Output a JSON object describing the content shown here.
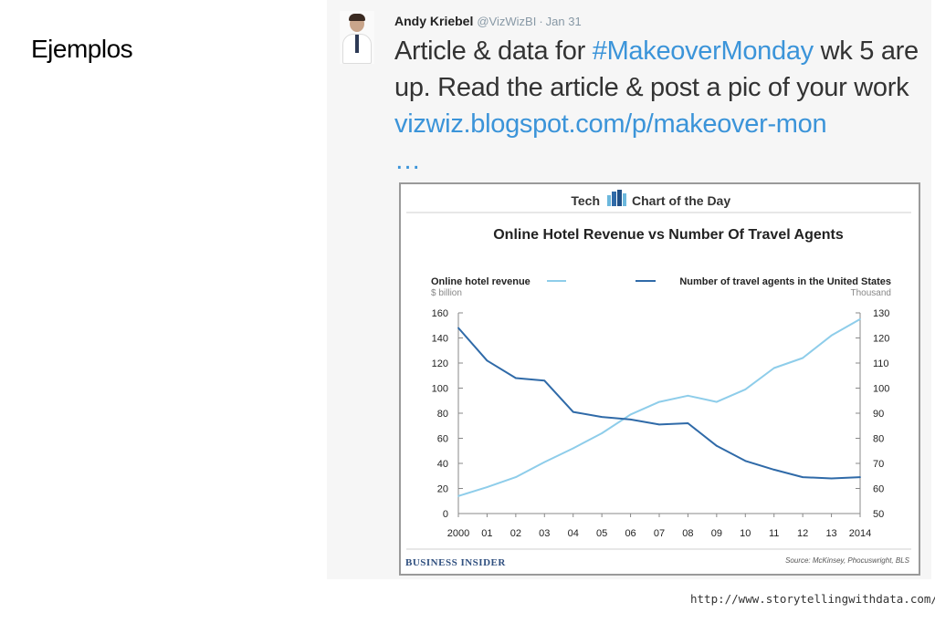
{
  "slide": {
    "title": "Ejemplos"
  },
  "tweet": {
    "author": "Andy Kriebel",
    "handle": "@VizWizBI",
    "separator": "·",
    "date": "Jan 31",
    "text_1": "Article & data for ",
    "hashtag": "#MakeoverMonday",
    "text_2": " wk 5 are up. Read the article & post a pic of your work ",
    "link": "vizwiz.blogspot.com/p/makeover-mon",
    "ellipsis": "…"
  },
  "card": {
    "brand_left": "Tech",
    "brand_right": "Chart of the Day",
    "footer_brand": "BUSINESS INSIDER",
    "source": "Source: McKinsey, Phocuswright, BLS"
  },
  "chart_data": {
    "type": "line",
    "title": "Online Hotel Revenue vs Number Of Travel Agents",
    "x_tick_labels": [
      "2000",
      "01",
      "02",
      "03",
      "04",
      "05",
      "06",
      "07",
      "08",
      "09",
      "10",
      "11",
      "12",
      "13",
      "2014"
    ],
    "x": [
      2000,
      2001,
      2002,
      2003,
      2004,
      2005,
      2006,
      2007,
      2008,
      2009,
      2010,
      2011,
      2012,
      2013,
      2014
    ],
    "y_left": {
      "label": "Online hotel revenue",
      "unit": "$ billion",
      "lim": [
        0,
        160
      ],
      "ticks": [
        0,
        20,
        40,
        60,
        80,
        100,
        120,
        140,
        160
      ]
    },
    "y_right": {
      "label": "Number of travel agents in the United States",
      "unit": "Thousand",
      "lim": [
        50,
        130
      ],
      "ticks": [
        50,
        60,
        70,
        80,
        90,
        100,
        110,
        120,
        130
      ]
    },
    "series": [
      {
        "name": "Online hotel revenue",
        "axis": "left",
        "color": "#8ecdea",
        "values": [
          14,
          21,
          29,
          41,
          52,
          64,
          79,
          89,
          94,
          89,
          99,
          116,
          124,
          142,
          155
        ]
      },
      {
        "name": "Number of travel agents in the United States",
        "axis": "right",
        "color": "#2f6aa8",
        "values": [
          124,
          111,
          104,
          103,
          90.5,
          88.5,
          87.5,
          85.5,
          86,
          77,
          71,
          67.5,
          64.5,
          64,
          64.5
        ]
      }
    ],
    "grid": false,
    "legend": "top"
  }
}
